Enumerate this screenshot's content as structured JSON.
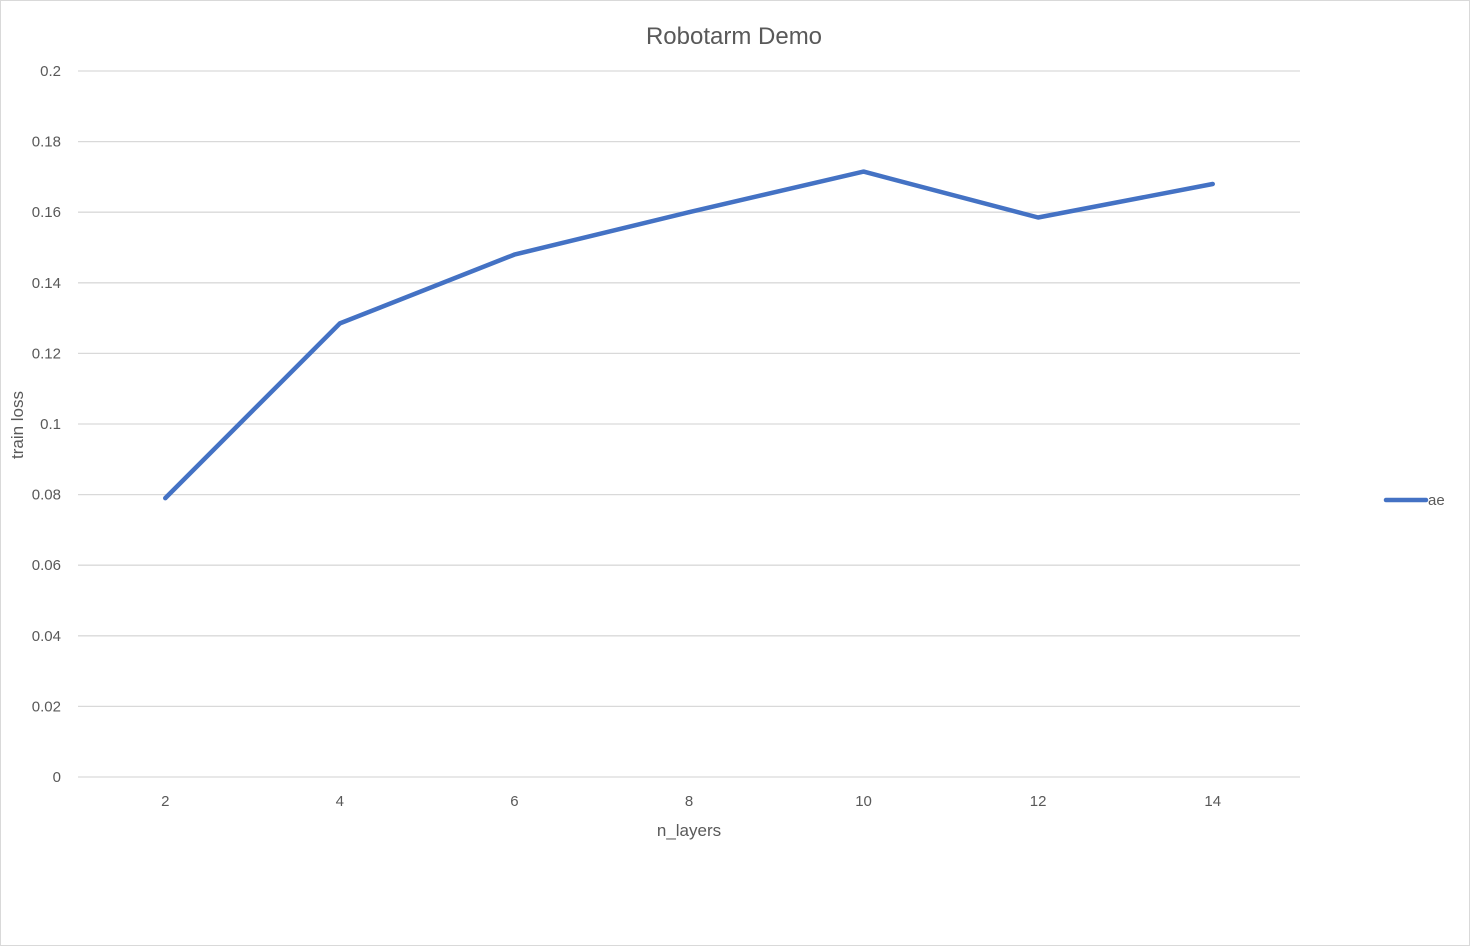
{
  "chart_data": {
    "type": "line",
    "title": "Robotarm Demo",
    "xlabel": "n_layers",
    "ylabel": "train loss",
    "categories": [
      "2",
      "4",
      "6",
      "8",
      "10",
      "12",
      "14"
    ],
    "series": [
      {
        "name": "ae",
        "color": "#4472C4",
        "values": [
          0.079,
          0.1285,
          0.148,
          0.16,
          0.1715,
          0.1585,
          0.168
        ]
      }
    ],
    "ylim": [
      0,
      0.2
    ],
    "yticks": [
      "0",
      "0.02",
      "0.04",
      "0.06",
      "0.08",
      "0.1",
      "0.12",
      "0.14",
      "0.16",
      "0.18",
      "0.2"
    ],
    "grid": true,
    "legend_position": "right"
  }
}
